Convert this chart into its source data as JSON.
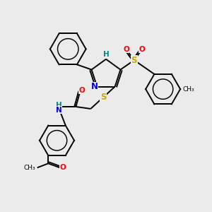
{
  "background_color": "#ebebeb",
  "atom_colors": {
    "C": "#000000",
    "N": "#0000ee",
    "O": "#ff0000",
    "S": "#ccaa00",
    "H": "#008888"
  },
  "bond_color": "#000000",
  "lw": 1.4,
  "fs": 8.5,
  "fs_small": 7.5
}
